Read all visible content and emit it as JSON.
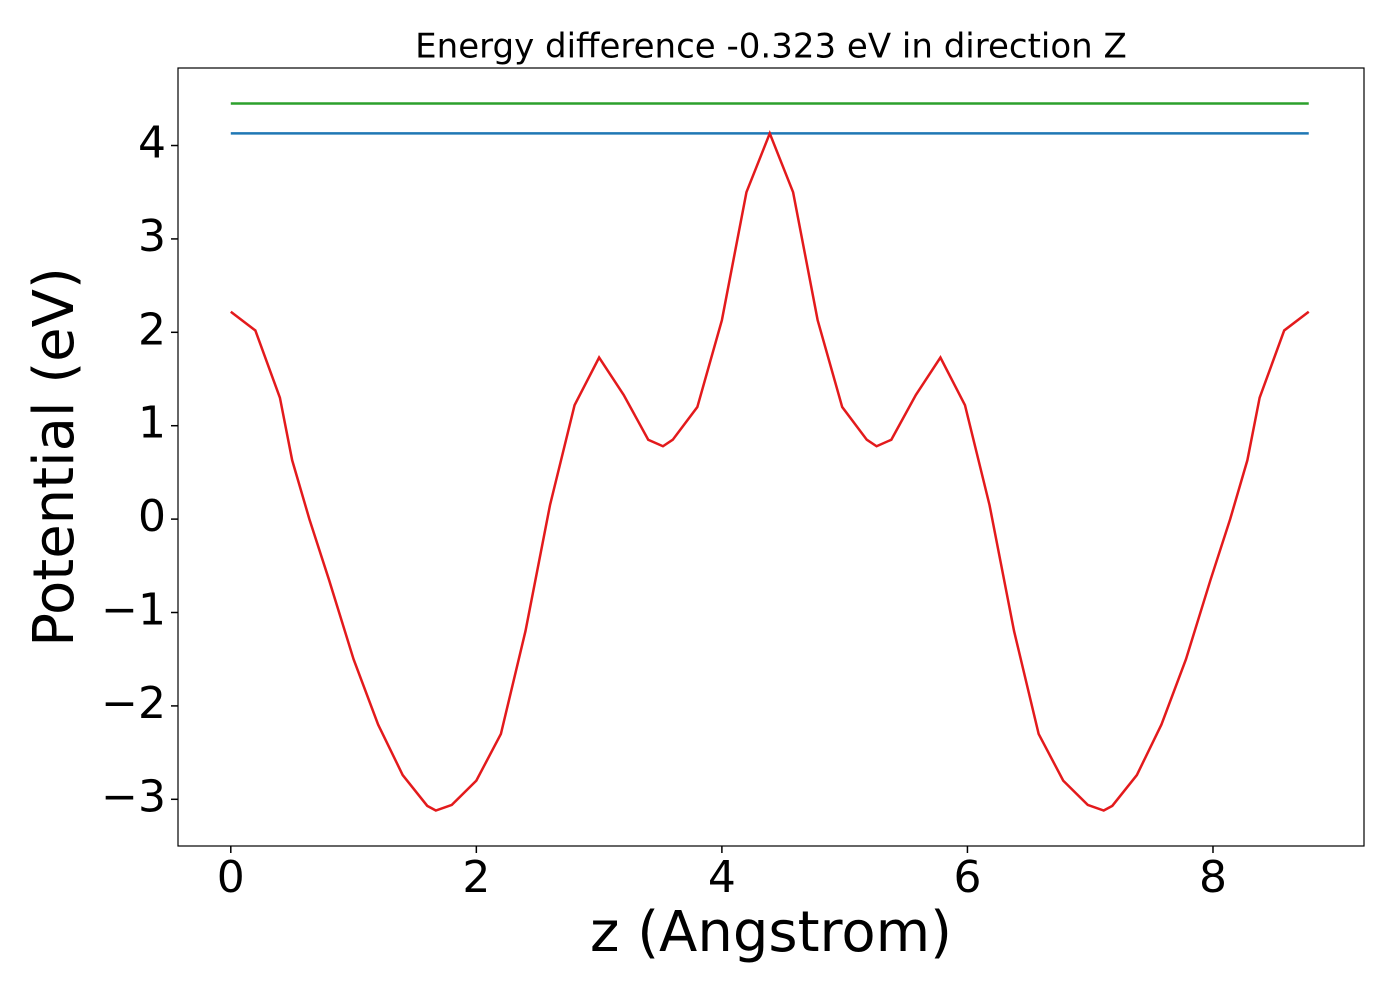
{
  "chart_data": {
    "type": "line",
    "title": "Energy difference -0.323 eV in direction Z",
    "x_label": "z (Angstrom)",
    "y_label": "Potential (eV)",
    "xlim": [
      -0.43,
      9.23
    ],
    "ylim": [
      -3.5,
      4.83
    ],
    "xticks": [
      0,
      2,
      4,
      6,
      8
    ],
    "yticks": [
      {
        "value": -3,
        "label": "−3"
      },
      {
        "value": -2,
        "label": "−2"
      },
      {
        "value": -1,
        "label": "−1"
      },
      0,
      1,
      2,
      3,
      4
    ],
    "series": [
      {
        "color": "#2ca02c",
        "x": [
          0,
          8.78
        ],
        "values": [
          4.45,
          4.45
        ]
      },
      {
        "color": "#1f77b4",
        "x": [
          0,
          8.78
        ],
        "values": [
          4.13,
          4.13
        ]
      },
      {
        "color": "#e31a1c",
        "x": [
          0,
          0.2,
          0.4,
          0.5,
          0.64,
          0.8,
          1.0,
          1.2,
          1.4,
          1.6,
          1.67,
          1.8,
          2.0,
          2.2,
          2.4,
          2.6,
          2.8,
          3.0,
          3.2,
          3.4,
          3.52,
          3.6,
          3.8,
          4.0,
          4.2,
          4.39,
          4.58,
          4.78,
          4.98,
          5.18,
          5.26,
          5.38,
          5.58,
          5.78,
          5.98,
          6.18,
          6.38,
          6.58,
          6.78,
          6.98,
          7.11,
          7.18,
          7.38,
          7.58,
          7.78,
          7.98,
          8.14,
          8.28,
          8.38,
          8.58,
          8.78
        ],
        "values": [
          2.22,
          2.02,
          1.3,
          0.63,
          0,
          -0.65,
          -1.5,
          -2.2,
          -2.74,
          -3.07,
          -3.12,
          -3.06,
          -2.8,
          -2.3,
          -1.2,
          0.15,
          1.22,
          1.73,
          1.33,
          0.85,
          0.78,
          0.85,
          1.2,
          2.13,
          3.5,
          4.13,
          3.5,
          2.13,
          1.2,
          0.85,
          0.78,
          0.85,
          1.33,
          1.73,
          1.22,
          0.15,
          -1.2,
          -2.3,
          -2.8,
          -3.06,
          -3.12,
          -3.07,
          -2.74,
          -2.2,
          -1.5,
          -0.65,
          0,
          0.63,
          1.3,
          2.02,
          2.22
        ]
      }
    ]
  }
}
